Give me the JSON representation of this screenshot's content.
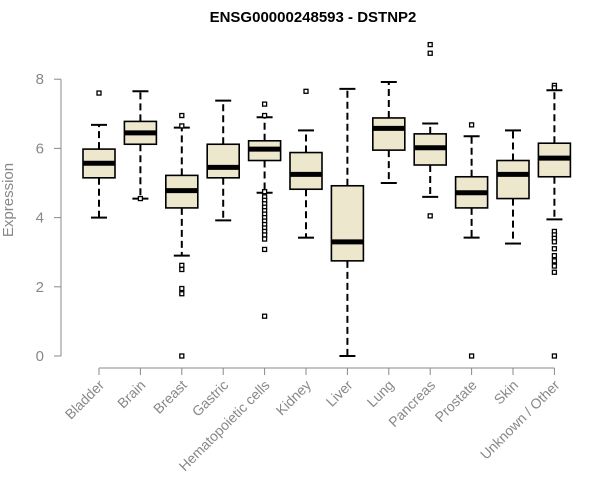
{
  "chart_data": {
    "type": "boxplot",
    "title": "ENSG00000248593 - DSTNP2",
    "xlabel": "",
    "ylabel": "Expression",
    "ylim": [
      0,
      8
    ],
    "yticks": [
      0,
      2,
      4,
      6,
      8
    ],
    "box_fill": "#ede7cd",
    "median_color": "#000000",
    "grid": false,
    "legend": "none",
    "categories": [
      "Bladder",
      "Brain",
      "Breast",
      "Gastric",
      "Hematopoietic cells",
      "Kidney",
      "Liver",
      "Lung",
      "Pancreas",
      "Prostate",
      "Skin",
      "Unknown / Other"
    ],
    "series": [
      {
        "category": "Bladder",
        "whisker_low": 4.0,
        "q1": 5.15,
        "median": 5.57,
        "q3": 5.98,
        "whisker_high": 6.68,
        "outliers": [
          7.6
        ]
      },
      {
        "category": "Brain",
        "whisker_low": 4.55,
        "q1": 6.12,
        "median": 6.45,
        "q3": 6.78,
        "whisker_high": 7.65,
        "outliers": [
          4.55
        ]
      },
      {
        "category": "Breast",
        "whisker_low": 2.9,
        "q1": 4.28,
        "median": 4.78,
        "q3": 5.22,
        "whisker_high": 6.6,
        "outliers": [
          6.95,
          6.65,
          2.62,
          2.5,
          1.95,
          1.8,
          0.0
        ]
      },
      {
        "category": "Gastric",
        "whisker_low": 3.92,
        "q1": 5.15,
        "median": 5.45,
        "q3": 6.12,
        "whisker_high": 7.38,
        "outliers": []
      },
      {
        "category": "Hematopoietic cells",
        "whisker_low": 4.72,
        "q1": 5.65,
        "median": 5.98,
        "q3": 6.22,
        "whisker_high": 6.9,
        "outliers": [
          7.28,
          6.95,
          4.75,
          4.6,
          4.5,
          4.4,
          4.3,
          4.2,
          4.1,
          4.0,
          3.9,
          3.8,
          3.7,
          3.6,
          3.5,
          3.38,
          3.08,
          1.15
        ]
      },
      {
        "category": "Kidney",
        "whisker_low": 3.42,
        "q1": 4.82,
        "median": 5.25,
        "q3": 5.88,
        "whisker_high": 6.52,
        "outliers": [
          7.65
        ]
      },
      {
        "category": "Liver",
        "whisker_low": 0.0,
        "q1": 2.75,
        "median": 3.3,
        "q3": 4.92,
        "whisker_high": 7.72,
        "outliers": []
      },
      {
        "category": "Lung",
        "whisker_low": 5.0,
        "q1": 5.95,
        "median": 6.58,
        "q3": 6.88,
        "whisker_high": 7.92,
        "outliers": []
      },
      {
        "category": "Pancreas",
        "whisker_low": 4.6,
        "q1": 5.52,
        "median": 6.02,
        "q3": 6.42,
        "whisker_high": 6.72,
        "outliers": [
          9.0,
          8.75,
          4.05
        ]
      },
      {
        "category": "Prostate",
        "whisker_low": 3.42,
        "q1": 4.28,
        "median": 4.72,
        "q3": 5.18,
        "whisker_high": 6.35,
        "outliers": [
          6.68,
          0.0
        ]
      },
      {
        "category": "Skin",
        "whisker_low": 3.25,
        "q1": 4.55,
        "median": 5.25,
        "q3": 5.65,
        "whisker_high": 6.52,
        "outliers": []
      },
      {
        "category": "Unknown / Other",
        "whisker_low": 3.95,
        "q1": 5.18,
        "median": 5.72,
        "q3": 6.15,
        "whisker_high": 7.68,
        "outliers": [
          7.82,
          7.75,
          3.6,
          3.5,
          3.4,
          3.3,
          3.1,
          2.9,
          2.75,
          2.6,
          2.42,
          0.0
        ]
      }
    ]
  }
}
